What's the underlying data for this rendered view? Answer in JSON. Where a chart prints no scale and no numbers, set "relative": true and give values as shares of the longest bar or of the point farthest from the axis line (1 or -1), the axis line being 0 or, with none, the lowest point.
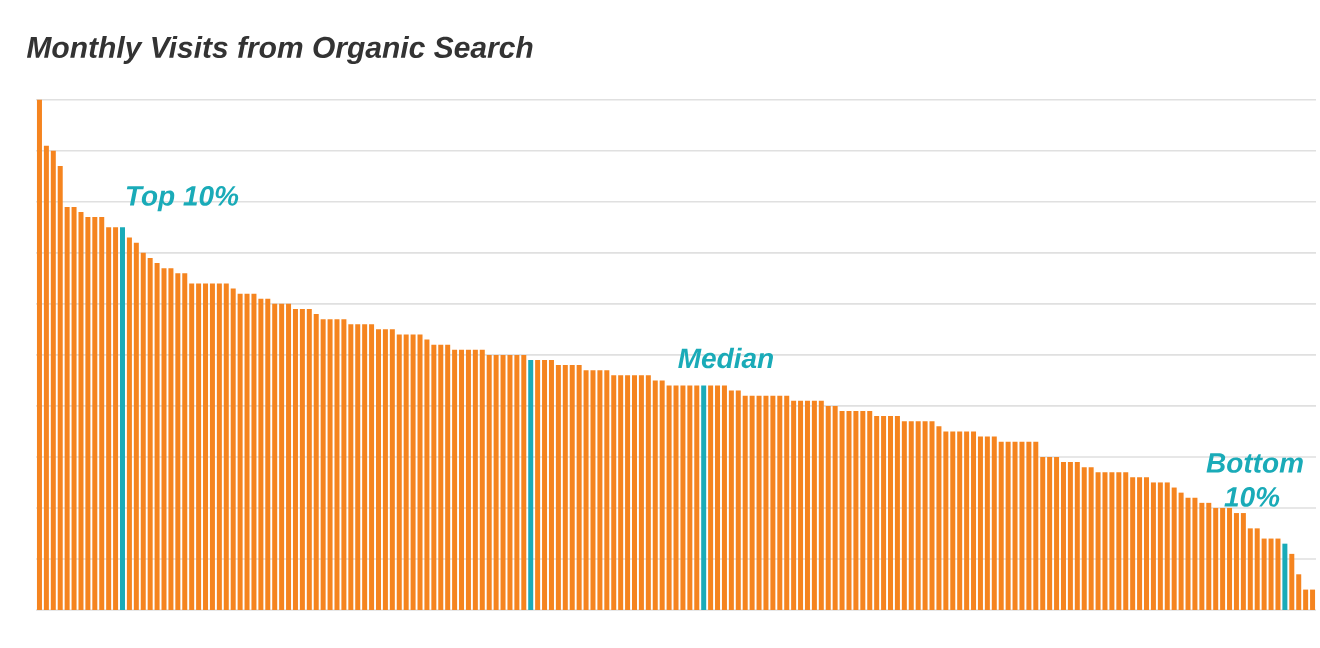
{
  "chart_data": {
    "type": "bar",
    "title": "Monthly Visits from Organic Search",
    "relative": true,
    "grid": "y",
    "categories": [
      null,
      null,
      null,
      null,
      null,
      null,
      null,
      null,
      null,
      null,
      null,
      null,
      null,
      null,
      null,
      null,
      null,
      null,
      null,
      null,
      null,
      null,
      null,
      null,
      null,
      null,
      null,
      null,
      null,
      null,
      null,
      null,
      null,
      null,
      null,
      null,
      null,
      null,
      null,
      null,
      null,
      null,
      null,
      null,
      null,
      null,
      null,
      null,
      null,
      null,
      null,
      null,
      null,
      null,
      null,
      null,
      null,
      null,
      null,
      null,
      null,
      null,
      null,
      null,
      null,
      null,
      null,
      null,
      null,
      null,
      null,
      null,
      null,
      null,
      null,
      null,
      null,
      null,
      null,
      null,
      null,
      null,
      null,
      null,
      null,
      null,
      null,
      null,
      null,
      null,
      null,
      null,
      null,
      null,
      null,
      null,
      null,
      null,
      null,
      null,
      null,
      null,
      null,
      null,
      null,
      null,
      null,
      null,
      null,
      null,
      null,
      null,
      null,
      null,
      null,
      null,
      null,
      null,
      null,
      null,
      null,
      null,
      null,
      null,
      null,
      null,
      null,
      null,
      null,
      null,
      null,
      null,
      null,
      null,
      null,
      null,
      null,
      null,
      null,
      null,
      null,
      null,
      null,
      null,
      null,
      null,
      null,
      null,
      null,
      null,
      null,
      null,
      null,
      null,
      null,
      null,
      null,
      null,
      null,
      null,
      null,
      null,
      null,
      null,
      null,
      null,
      null,
      null,
      null,
      null,
      null,
      null,
      null,
      null,
      null,
      null,
      null,
      null,
      null,
      null,
      null,
      null,
      null,
      null,
      null
    ],
    "values": [
      1.0,
      0.91,
      0.9,
      0.87,
      0.79,
      0.79,
      0.78,
      0.77,
      0.77,
      0.77,
      0.75,
      0.75,
      0.75,
      0.73,
      0.72,
      0.7,
      0.69,
      0.68,
      0.67,
      0.67,
      0.66,
      0.66,
      0.64,
      0.64,
      0.64,
      0.64,
      0.64,
      0.64,
      0.63,
      0.62,
      0.62,
      0.62,
      0.61,
      0.61,
      0.6,
      0.6,
      0.6,
      0.59,
      0.59,
      0.59,
      0.58,
      0.57,
      0.57,
      0.57,
      0.57,
      0.56,
      0.56,
      0.56,
      0.56,
      0.55,
      0.55,
      0.55,
      0.54,
      0.54,
      0.54,
      0.54,
      0.53,
      0.52,
      0.52,
      0.52,
      0.51,
      0.51,
      0.51,
      0.51,
      0.51,
      0.5,
      0.5,
      0.5,
      0.5,
      0.5,
      0.5,
      0.49,
      0.49,
      0.49,
      0.49,
      0.48,
      0.48,
      0.48,
      0.48,
      0.47,
      0.47,
      0.47,
      0.47,
      0.46,
      0.46,
      0.46,
      0.46,
      0.46,
      0.46,
      0.45,
      0.45,
      0.44,
      0.44,
      0.44,
      0.44,
      0.44,
      0.44,
      0.44,
      0.44,
      0.44,
      0.43,
      0.43,
      0.42,
      0.42,
      0.42,
      0.42,
      0.42,
      0.42,
      0.42,
      0.41,
      0.41,
      0.41,
      0.41,
      0.41,
      0.4,
      0.4,
      0.39,
      0.39,
      0.39,
      0.39,
      0.39,
      0.38,
      0.38,
      0.38,
      0.38,
      0.37,
      0.37,
      0.37,
      0.37,
      0.37,
      0.36,
      0.35,
      0.35,
      0.35,
      0.35,
      0.35,
      0.34,
      0.34,
      0.34,
      0.33,
      0.33,
      0.33,
      0.33,
      0.33,
      0.33,
      0.3,
      0.3,
      0.3,
      0.29,
      0.29,
      0.29,
      0.28,
      0.28,
      0.27,
      0.27,
      0.27,
      0.27,
      0.27,
      0.26,
      0.26,
      0.26,
      0.25,
      0.25,
      0.25,
      0.24,
      0.23,
      0.22,
      0.22,
      0.21,
      0.21,
      0.2,
      0.2,
      0.2,
      0.19,
      0.19,
      0.16,
      0.16,
      0.14,
      0.14,
      0.14,
      0.13,
      0.11,
      0.07,
      0.04,
      0.04
    ],
    "colors": [
      "#f5841f",
      "#f5841f",
      "#f5841f",
      "#f5841f",
      "#f5841f",
      "#f5841f",
      "#f5841f",
      "#f5841f",
      "#f5841f",
      "#f5841f",
      "#f5841f",
      "#f5841f",
      "#1aabb8",
      "#f5841f",
      "#f5841f",
      "#f5841f",
      "#f5841f",
      "#f5841f",
      "#f5841f",
      "#f5841f",
      "#f5841f",
      "#f5841f",
      "#f5841f",
      "#f5841f",
      "#f5841f",
      "#f5841f",
      "#f5841f",
      "#f5841f",
      "#f5841f",
      "#f5841f",
      "#f5841f",
      "#f5841f",
      "#f5841f",
      "#f5841f",
      "#f5841f",
      "#f5841f",
      "#f5841f",
      "#f5841f",
      "#f5841f",
      "#f5841f",
      "#f5841f",
      "#f5841f",
      "#f5841f",
      "#f5841f",
      "#f5841f",
      "#f5841f",
      "#f5841f",
      "#f5841f",
      "#f5841f",
      "#f5841f",
      "#f5841f",
      "#f5841f",
      "#f5841f",
      "#f5841f",
      "#f5841f",
      "#f5841f",
      "#f5841f",
      "#f5841f",
      "#f5841f",
      "#f5841f",
      "#f5841f",
      "#f5841f",
      "#f5841f",
      "#f5841f",
      "#f5841f",
      "#f5841f",
      "#f5841f",
      "#f5841f",
      "#f5841f",
      "#f5841f",
      "#f5841f",
      "#1aabb8",
      "#f5841f",
      "#f5841f",
      "#f5841f",
      "#f5841f",
      "#f5841f",
      "#f5841f",
      "#f5841f",
      "#f5841f",
      "#f5841f",
      "#f5841f",
      "#f5841f",
      "#f5841f",
      "#f5841f",
      "#f5841f",
      "#f5841f",
      "#f5841f",
      "#f5841f",
      "#f5841f",
      "#f5841f",
      "#f5841f",
      "#f5841f",
      "#f5841f",
      "#f5841f",
      "#f5841f",
      "#1aabb8",
      "#f5841f",
      "#f5841f",
      "#f5841f",
      "#f5841f",
      "#f5841f",
      "#f5841f",
      "#f5841f",
      "#f5841f",
      "#f5841f",
      "#f5841f",
      "#f5841f",
      "#f5841f",
      "#f5841f",
      "#f5841f",
      "#f5841f",
      "#f5841f",
      "#f5841f",
      "#f5841f",
      "#f5841f",
      "#f5841f",
      "#f5841f",
      "#f5841f",
      "#f5841f",
      "#f5841f",
      "#f5841f",
      "#f5841f",
      "#f5841f",
      "#f5841f",
      "#f5841f",
      "#f5841f",
      "#f5841f",
      "#f5841f",
      "#f5841f",
      "#f5841f",
      "#f5841f",
      "#f5841f",
      "#f5841f",
      "#f5841f",
      "#f5841f",
      "#f5841f",
      "#f5841f",
      "#f5841f",
      "#f5841f",
      "#f5841f",
      "#f5841f",
      "#f5841f",
      "#f5841f",
      "#f5841f",
      "#f5841f",
      "#f5841f",
      "#f5841f",
      "#f5841f",
      "#f5841f",
      "#f5841f",
      "#f5841f",
      "#f5841f",
      "#f5841f",
      "#f5841f",
      "#f5841f",
      "#f5841f",
      "#f5841f",
      "#f5841f",
      "#f5841f",
      "#f5841f",
      "#f5841f",
      "#f5841f",
      "#f5841f",
      "#f5841f",
      "#f5841f",
      "#f5841f",
      "#f5841f",
      "#f5841f",
      "#f5841f",
      "#f5841f",
      "#f5841f",
      "#f5841f",
      "#f5841f",
      "#f5841f",
      "#f5841f",
      "#f5841f",
      "#f5841f",
      "#f5841f",
      "#f5841f",
      "#1aabb8",
      "#f5841f",
      "#f5841f",
      "#f5841f",
      "#f5841f"
    ],
    "annotations": [
      "Top 10%",
      "Median",
      "Bottom 10%"
    ]
  }
}
